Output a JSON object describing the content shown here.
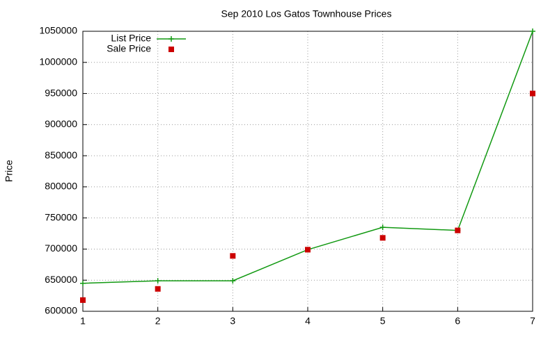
{
  "chart_data": {
    "type": "line",
    "title": "Sep 2010 Los Gatos Townhouse Prices",
    "y_label": "Price",
    "x": [
      1,
      2,
      3,
      4,
      5,
      6,
      7
    ],
    "series": [
      {
        "name": "List Price",
        "color": "#119911",
        "line": true,
        "marker": "plus",
        "values": [
          645000,
          649000,
          649000,
          699000,
          735000,
          730000,
          1050000
        ]
      },
      {
        "name": "Sale Price",
        "color": "#cc0000",
        "line": false,
        "marker": "square",
        "values": [
          618000,
          636000,
          689000,
          699000,
          718000,
          730000,
          950000
        ]
      }
    ],
    "xlim": [
      1,
      7
    ],
    "xticks": [
      1,
      2,
      3,
      4,
      5,
      6,
      7
    ],
    "ylim": [
      600000,
      1050000
    ],
    "yticks": [
      600000,
      650000,
      700000,
      750000,
      800000,
      850000,
      900000,
      950000,
      1000000,
      1050000
    ],
    "grid": true,
    "legend": "top-left"
  }
}
